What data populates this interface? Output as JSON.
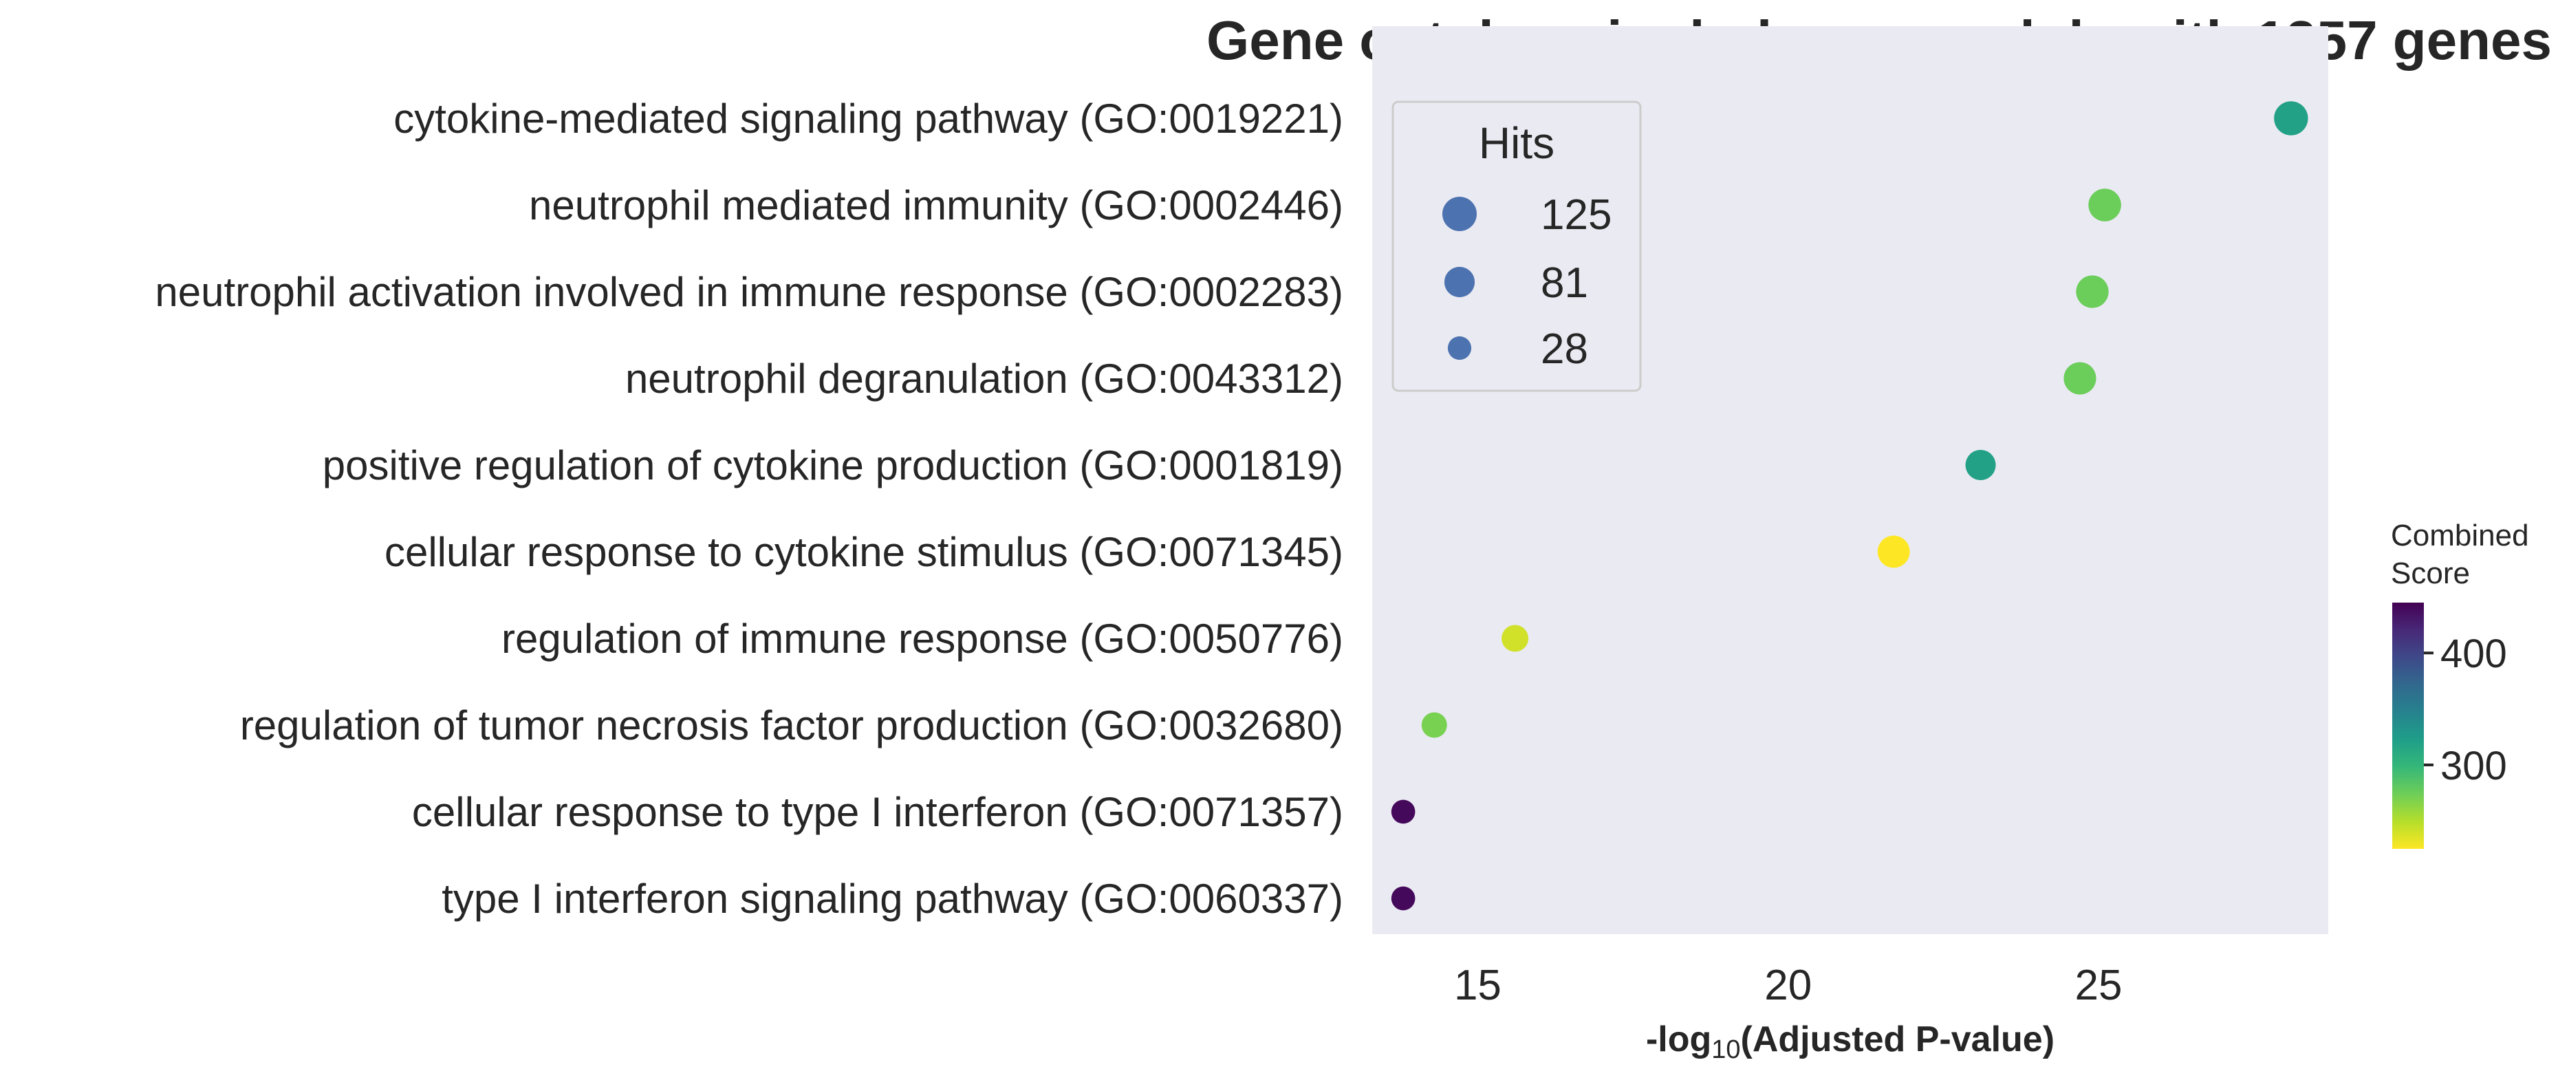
{
  "chart_data": {
    "type": "scatter",
    "title": "Gene ontology in darkgray module with 1257 genes",
    "xlabel_prefix": "-log",
    "xlabel_sub": "10",
    "xlabel_suffix": "(Adjusted P-value)",
    "xlim": [
      13.3,
      28.7
    ],
    "xticks": [
      15,
      20,
      25
    ],
    "grid": false,
    "background": "#eaeaf2",
    "points": [
      {
        "term": "cytokine-mediated signaling pathway (GO:0019221)",
        "x": 28.1,
        "hits": 120,
        "score": 320
      },
      {
        "term": "neutrophil mediated immunity (GO:0002446)",
        "x": 25.1,
        "hits": 105,
        "score": 275
      },
      {
        "term": "neutrophil activation involved in immune response (GO:0002283)",
        "x": 24.9,
        "hits": 103,
        "score": 275
      },
      {
        "term": "neutrophil degranulation (GO:0043312)",
        "x": 24.7,
        "hits": 102,
        "score": 275
      },
      {
        "term": "positive regulation of cytokine production (GO:0001819)",
        "x": 23.1,
        "hits": 80,
        "score": 320
      },
      {
        "term": "cellular response to cytokine stimulus (GO:0071345)",
        "x": 21.7,
        "hits": 100,
        "score": 225
      },
      {
        "term": "regulation of immune response (GO:0050776)",
        "x": 15.6,
        "hits": 50,
        "score": 240
      },
      {
        "term": "regulation of tumor necrosis factor production (GO:0032680)",
        "x": 14.3,
        "hits": 40,
        "score": 270
      },
      {
        "term": "cellular response to type I interferon (GO:0071357)",
        "x": 13.8,
        "hits": 30,
        "score": 440
      },
      {
        "term": "type I interferon signaling pathway (GO:0060337)",
        "x": 13.8,
        "hits": 30,
        "score": 440
      }
    ],
    "size_legend": {
      "title": "Hits",
      "position": "top-left",
      "color": "#4c72b0",
      "entries": [
        {
          "label": "125",
          "value": 125
        },
        {
          "label": "81",
          "value": 81
        },
        {
          "label": "28",
          "value": 28
        }
      ]
    },
    "colorbar": {
      "title_line1": "Combined",
      "title_line2": "Score",
      "range": [
        225,
        445
      ],
      "ticks": [
        {
          "label": "300",
          "value": 300
        },
        {
          "label": "400",
          "value": 400
        }
      ],
      "colormap": "viridis_r",
      "colors": [
        "#440154",
        "#482878",
        "#3e4989",
        "#31688e",
        "#26828e",
        "#1f9e89",
        "#35b779",
        "#6ece58",
        "#b5de2b",
        "#fde725"
      ]
    }
  }
}
